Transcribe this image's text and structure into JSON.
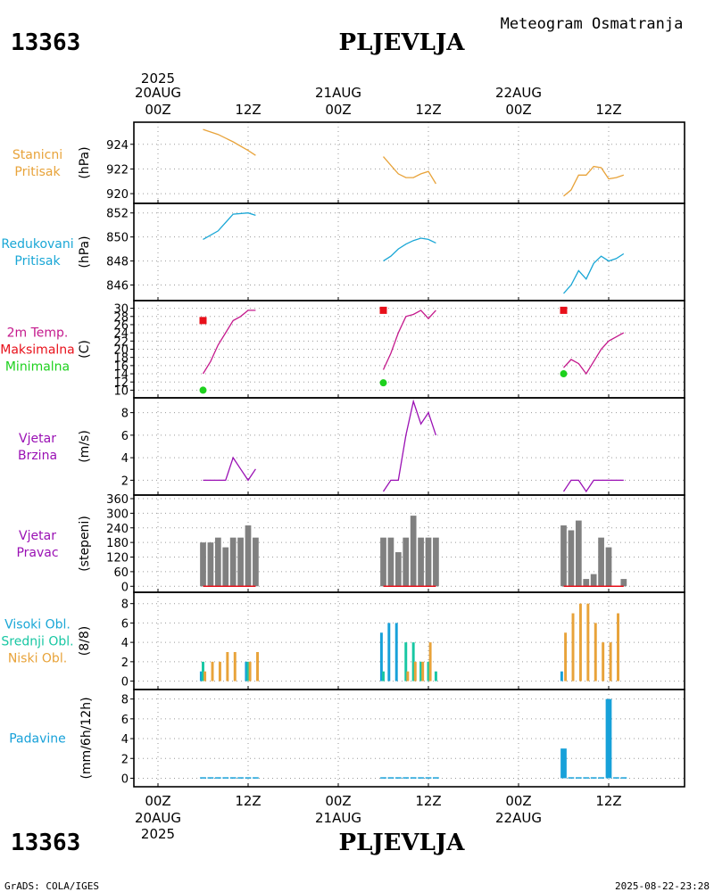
{
  "header": {
    "subtitle": "Meteogram Osmatranja",
    "station_id": "13363",
    "station_name": "PLJEVLJA"
  },
  "time_axis": {
    "year": "2025",
    "days": [
      "20AUG",
      "21AUG",
      "22AUG"
    ],
    "labels": [
      "00Z",
      "12Z",
      "00Z",
      "12Z",
      "00Z",
      "12Z"
    ],
    "tick_hours": [
      0,
      12,
      24,
      36,
      48,
      60
    ]
  },
  "footer": {
    "left": "GrADS: COLA/IGES",
    "right": "2025-08-22-23:28"
  },
  "colors": {
    "orange": "#e8a33a",
    "cyan": "#1aa7d6",
    "magenta": "#c4198c",
    "red": "#e8101a",
    "green": "#1dd11d",
    "purple": "#9a10b4",
    "gray": "#808080",
    "teal": "#18c7a3",
    "blue": "#17a1d9"
  },
  "chart_data": [
    {
      "id": "station-pressure",
      "type": "line",
      "title": [
        "Stanicni",
        "Pritisak"
      ],
      "title_colors": [
        "orange",
        "orange"
      ],
      "ylabel": "(hPa)",
      "ylim": [
        919.5,
        925.5
      ],
      "yticks": [
        920,
        922,
        924
      ],
      "series": [
        {
          "name": "Stanicni Pritisak",
          "color": "orange",
          "segments": [
            {
              "x": [
                6,
                8,
                10,
                12,
                13
              ],
              "y": [
                925.2,
                924.8,
                924.2,
                923.5,
                923.1
              ]
            },
            {
              "x": [
                30,
                31,
                32,
                33,
                34,
                35,
                36,
                37
              ],
              "y": [
                923.0,
                922.3,
                921.6,
                921.3,
                921.3,
                921.6,
                921.8,
                920.8
              ]
            },
            {
              "x": [
                54,
                55,
                56,
                57,
                58,
                59,
                60,
                61,
                62
              ],
              "y": [
                919.8,
                920.3,
                921.5,
                921.5,
                922.2,
                922.1,
                921.2,
                921.3,
                921.5
              ]
            }
          ]
        }
      ]
    },
    {
      "id": "reduced-pressure",
      "type": "line",
      "title": [
        "Redukovani",
        "Pritisak"
      ],
      "title_colors": [
        "cyan",
        "cyan"
      ],
      "ylabel": "(hPa)",
      "ylim": [
        845,
        852.5
      ],
      "yticks": [
        846,
        848,
        850,
        852
      ],
      "series": [
        {
          "name": "Redukovani Pritisak",
          "color": "cyan",
          "segments": [
            {
              "x": [
                6,
                8,
                10,
                12,
                13
              ],
              "y": [
                849.8,
                850.5,
                851.9,
                852.0,
                851.8
              ]
            },
            {
              "x": [
                30,
                31,
                32,
                33,
                34,
                35,
                36,
                37
              ],
              "y": [
                848.0,
                848.4,
                849.0,
                849.4,
                849.7,
                849.9,
                849.8,
                849.5
              ]
            },
            {
              "x": [
                54,
                55,
                56,
                57,
                58,
                59,
                60,
                61,
                62
              ],
              "y": [
                845.3,
                846.0,
                847.2,
                846.5,
                847.8,
                848.4,
                848.0,
                848.2,
                848.6
              ]
            }
          ]
        }
      ]
    },
    {
      "id": "temperature",
      "type": "line",
      "title": [
        "2m Temp.",
        "Maksimalna",
        "Minimalna"
      ],
      "title_colors": [
        "magenta",
        "red",
        "green"
      ],
      "ylabel": "(C)",
      "ylim": [
        9,
        31
      ],
      "yticks": [
        10,
        12,
        14,
        16,
        18,
        20,
        22,
        24,
        26,
        28,
        30
      ],
      "series": [
        {
          "name": "2m Temp.",
          "color": "magenta",
          "segments": [
            {
              "x": [
                6,
                7,
                8,
                9,
                10,
                11,
                12,
                13
              ],
              "y": [
                14.0,
                17.0,
                21.0,
                24.0,
                27.0,
                28.0,
                29.5,
                29.5
              ]
            },
            {
              "x": [
                30,
                31,
                32,
                33,
                34,
                35,
                36,
                37
              ],
              "y": [
                15.0,
                19.0,
                24.0,
                28.0,
                28.5,
                29.5,
                27.5,
                29.5
              ]
            },
            {
              "x": [
                54,
                55,
                56,
                57,
                58,
                59,
                60,
                61,
                62
              ],
              "y": [
                15.5,
                17.5,
                16.5,
                14.0,
                17.0,
                20.0,
                22.0,
                23.0,
                24.0
              ]
            }
          ]
        },
        {
          "name": "Maksimalna",
          "color": "red",
          "marker": "square",
          "points": {
            "x": [
              6,
              30,
              54
            ],
            "y": [
              27.0,
              29.5,
              29.5
            ]
          }
        },
        {
          "name": "Minimalna",
          "color": "green",
          "marker": "circle",
          "points": {
            "x": [
              6,
              30,
              54
            ],
            "y": [
              10.0,
              11.8,
              14.0
            ]
          }
        }
      ]
    },
    {
      "id": "wind-speed",
      "type": "line",
      "title": [
        "Vjetar",
        "Brzina"
      ],
      "title_colors": [
        "purple",
        "purple"
      ],
      "ylabel": "(m/s)",
      "ylim": [
        1,
        9
      ],
      "yticks": [
        2,
        4,
        6,
        8
      ],
      "series": [
        {
          "name": "Vjetar Brzina",
          "color": "purple",
          "segments": [
            {
              "x": [
                6,
                7,
                8,
                9,
                10,
                11,
                12,
                13
              ],
              "y": [
                2,
                2,
                2,
                2,
                4,
                3,
                2,
                3
              ]
            },
            {
              "x": [
                30,
                31,
                32,
                33,
                34,
                35,
                36,
                37
              ],
              "y": [
                1,
                2,
                2,
                6,
                9,
                7,
                8,
                6
              ]
            },
            {
              "x": [
                54,
                55,
                56,
                57,
                58,
                59,
                60,
                61,
                62
              ],
              "y": [
                1,
                2,
                2,
                1,
                2,
                2,
                2,
                2,
                2
              ]
            }
          ]
        }
      ]
    },
    {
      "id": "wind-direction",
      "type": "bar",
      "title": [
        "Vjetar",
        "Pravac"
      ],
      "title_colors": [
        "purple",
        "purple"
      ],
      "ylabel": "(stepeni)",
      "ylim": [
        -10,
        360
      ],
      "yticks": [
        0,
        60,
        120,
        180,
        240,
        300,
        360
      ],
      "bar_width": 0.8,
      "series": [
        {
          "name": "Vjetar Pravac",
          "color": "gray",
          "x": [
            6,
            7,
            8,
            9,
            10,
            11,
            12,
            13,
            30,
            31,
            32,
            33,
            34,
            35,
            36,
            37,
            54,
            55,
            56,
            57,
            58,
            59,
            60,
            61,
            62
          ],
          "values": [
            180,
            180,
            200,
            160,
            200,
            200,
            250,
            200,
            200,
            200,
            140,
            200,
            290,
            200,
            200,
            200,
            250,
            230,
            270,
            30,
            50,
            200,
            160,
            0,
            30
          ]
        }
      ],
      "baseline_segments": [
        [
          6,
          13
        ],
        [
          30,
          37
        ],
        [
          54,
          62
        ]
      ],
      "baseline_color": "red"
    },
    {
      "id": "clouds",
      "type": "bar",
      "title": [
        "Visoki Obl.",
        "Srednji Obl.",
        "Niski Obl."
      ],
      "title_colors": [
        "cyan",
        "teal",
        "orange"
      ],
      "ylabel": "(8/8)",
      "ylim": [
        -0.5,
        8.8
      ],
      "yticks": [
        0,
        2,
        4,
        6,
        8
      ],
      "bar_width": 0.8,
      "x": [
        6,
        7,
        8,
        9,
        10,
        11,
        12,
        13,
        30,
        31,
        32,
        33,
        34,
        35,
        36,
        37,
        54,
        55,
        56,
        57,
        58,
        59,
        60,
        61,
        62
      ],
      "series": [
        {
          "name": "Visoki Obl.",
          "color": "blue",
          "offset": -0.25,
          "width": 0.35,
          "values": [
            1,
            0,
            0,
            0,
            0,
            0,
            2,
            0,
            5,
            6,
            6,
            0,
            0,
            0,
            0,
            0,
            1,
            0,
            0,
            0,
            0,
            0,
            0,
            0,
            0
          ]
        },
        {
          "name": "Srednji Obl.",
          "color": "teal",
          "offset": 0,
          "width": 0.35,
          "values": [
            2,
            0,
            0,
            0,
            0,
            0,
            2,
            0,
            1,
            0,
            0,
            4,
            4,
            2,
            2,
            1,
            0,
            0,
            0,
            0,
            0,
            0,
            0,
            0,
            0
          ]
        },
        {
          "name": "Niski Obl.",
          "color": "orange",
          "offset": 0.25,
          "width": 0.35,
          "values": [
            1,
            2,
            2,
            3,
            3,
            0,
            2,
            3,
            0,
            0,
            0,
            1,
            2,
            2,
            4,
            0,
            5,
            7,
            8,
            8,
            6,
            4,
            4,
            7,
            0
          ]
        }
      ]
    },
    {
      "id": "precipitation",
      "type": "bar",
      "title": [
        "Padavine"
      ],
      "title_colors": [
        "blue"
      ],
      "ylabel": "(mm/6h/12h)",
      "ylim": [
        -0.5,
        8.6
      ],
      "yticks": [
        0,
        2,
        4,
        6,
        8
      ],
      "bar_width": 0.8,
      "series": [
        {
          "name": "Padavine",
          "color": "blue",
          "x": [
            6,
            7,
            8,
            9,
            10,
            11,
            12,
            13,
            30,
            31,
            32,
            33,
            34,
            35,
            36,
            37,
            54,
            55,
            56,
            57,
            58,
            59,
            60,
            61,
            62
          ],
          "values": [
            0.1,
            0.1,
            0.1,
            0.1,
            0.1,
            0.1,
            0.1,
            0.1,
            0.1,
            0.1,
            0.1,
            0.1,
            0.1,
            0.1,
            0.1,
            0.1,
            3.0,
            0.1,
            0.1,
            0.1,
            0.1,
            0.1,
            8.0,
            0.1,
            0.1
          ]
        }
      ]
    }
  ]
}
